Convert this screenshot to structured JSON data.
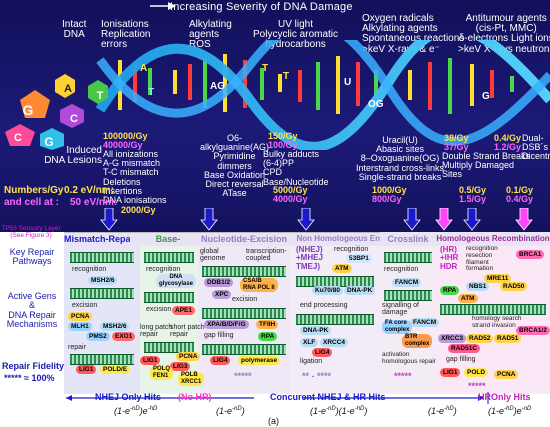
{
  "header": {
    "severity_title": "Increasing Severity of DNA Damage"
  },
  "damage_columns": [
    {
      "label": "Intact\nDNA"
    },
    {
      "label": "Ionisations\nReplication\nerrors"
    },
    {
      "label": "Alkylating\nagents\nROS"
    },
    {
      "label": "UV light\nPolycyclic aromatic\nhydrocarbons"
    },
    {
      "label": "Oxygen radicals\nAlkylating agents\nSpontaneous reactions\n>keV X-rays & e⁻"
    },
    {
      "label": "Antitumour agents\n(cis-Pt, MMC)\nδ-electrons Light ions\n>keV X-rays neutrons"
    }
  ],
  "lesions": {
    "induced_label": "Induced\nDNA Lesions",
    "col1": {
      "rate_a": "100000/Gy",
      "rate_b": "40000/Gy",
      "text": "All ionizations\nA-G mismatch\nT-C mismatch\nDeletions\nInsertions\nDNA ionisations",
      "rate_c": "2000/Gy"
    },
    "col2": {
      "text": "O6-\nalkylguanine(AG)\nPyrimidine\ndimmers\nBase Oxidation\nDirect reversal\nATase"
    },
    "col3": {
      "rate_a": "150/Gy",
      "rate_b": "100/Gy",
      "text": "Bulky adducts\n(6-4)PP\nCPD\nBase/Nucleotide",
      "rate_c": "5000/Gy",
      "rate_d": "4000/Gy"
    },
    "col4": {
      "text": "Uracil(U)\nAbasic sites\n8–Oxoguanine(OG)\nInterstrand cross-links\nSingle-strand breaks",
      "rate_a": "1000/Gy",
      "rate_b": "800/Gy"
    },
    "col5": {
      "rate_a": "38/Gy",
      "rate_b": "37/Gy",
      "text": "Double Strand Breaks\nMultiply Damaged\nSites",
      "rate_c": "0.5/Gy",
      "rate_d": "1.5/Gy"
    },
    "col6": {
      "rate_a": "0.4/Gy",
      "text_a": "Dual-",
      "rate_b": "1.2/Gy",
      "text_b": "DSB´s\nDicentrics",
      "rate_c": "0.1/Gy",
      "rate_d": "0.4/Gy"
    }
  },
  "numbers": {
    "label": "Numbers/Gy",
    "line1": "0.2 eV/nm:",
    "line2_prefix": "and cell at :",
    "line2": "50 eV/nm:"
  },
  "sensory": {
    "text": "TP53 Sensory Layer\n(See Figure 3)"
  },
  "left_labels": {
    "key_repair": "Key Repair\nPathways",
    "active_genes": "Active Gens\n&\nDNA Repair\nMechanisms",
    "fidelity": "Repair Fidelity:",
    "fidelity_value": "***** ≈ 100%"
  },
  "pathways": [
    {
      "name": "Mismatch-Repair",
      "color": "#1a1acc"
    },
    {
      "name": "Base-",
      "color": "#3a9a3a"
    },
    {
      "name": "Nucleotide-Excision",
      "color": "#9a7ac0"
    },
    {
      "name": "Non Homologeous End Joining",
      "color": "#9a7ac0"
    },
    {
      "name": "Crosslink",
      "color": "#9a7ac0"
    },
    {
      "name": "Homologeous Recombination",
      "color": "#9a2a9a"
    }
  ],
  "lanes": {
    "mmr": {
      "recognition": "recognition",
      "msh": "MSH2/6",
      "excision": "excision",
      "pcna": "PCNA",
      "mlh": "MLH1",
      "msh2": "MSH2/6",
      "pms": "PMS2",
      "exo": "EXO1",
      "repair": "repair",
      "lig": "LIG1",
      "pold": "POLD/E"
    },
    "ber": {
      "recognition": "recognition",
      "glyc": "DNA\nglycosylase",
      "excision": "excision",
      "ape": "APE1",
      "long": "long patch\nrepair",
      "short": "short patch\nrepair",
      "pcna": "PCNA",
      "lig1": "LIG1",
      "lig3": "LIG3",
      "polq": "POLQ\nFEN1",
      "polb": "POLB\nXRCC1"
    },
    "ner": {
      "global": "global\ngenome",
      "tc": "transcription-\ncoupled",
      "ddb": "DDB1/2",
      "csa": "CSA/B\nRNA POL II",
      "xpc": "XPC",
      "excision": "excision",
      "xpa": "XPA/B/D/F/G",
      "tfiih": "TFIIH",
      "gap": "gap filling",
      "rpa": "RPA",
      "lig4": "LIG4",
      "pol": "polymerase",
      "stars": "*****"
    },
    "nhej": {
      "title": "(NHEJ)\n+MHEJ\nTMEJ)",
      "recognition": "recognition",
      "ku": "Ku70/80",
      "dnapk": "DNA-PK",
      "p53bp1": "53BP1",
      "atm": "ATM",
      "endproc": "end processing",
      "dnapk2": "DNA-PK",
      "xlf": "XLF",
      "xrcc4": "XRCC4",
      "lig4": "LIG4",
      "ligation": "ligation",
      "stars": "** - ****"
    },
    "fa": {
      "recognition": "recognition",
      "fancm": "FANCM",
      "signal": "signalling of\ndamage",
      "facore": "FA core\ncomplex",
      "fancm2": "FANCM",
      "btr": "BTR\ncomplex",
      "activ": "activation\nhomologous repair",
      "stars": "*****"
    },
    "hr": {
      "title": "(HR)\n+IHR\nHDR",
      "recog": "recognition\nresection\nfilament\nformation",
      "brca1": "BRCA1",
      "mre11": "MRE11",
      "nbs": "NBS1",
      "rad50": "RAD50",
      "rpa": "RPA",
      "atm": "ATM",
      "homology": "homology search\nstrand invasion",
      "xrcc3": "XRCC3",
      "rad52": "RAD52",
      "rad51": "RAD51",
      "brca12": "BRCA1/2",
      "rad51c": "RAD51C",
      "gap": "gap filling",
      "lig1": "LIG1",
      "pold": "POLD",
      "pcna": "PCNA",
      "stars": "*****"
    }
  },
  "footer": {
    "nhej_only": "NHEJ Only Hits",
    "no_hr": "(No HR)",
    "concurrent": "Concurent NHEJ & HR Hits",
    "hr_only": "HROnly Hits",
    "f1": "(1-e",
    "f1_sup": "-nD",
    "f1b": ")e",
    "f1b_sup": "-hD",
    "f2": "(1-e",
    "f2_sup": "-nD",
    "f2b": ")",
    "f3": "(1-e",
    "f3_sup": "-nD",
    "f3b": ")(1-e",
    "f3b_sup": "-hD",
    "f3c": ")",
    "f4": "(1-e",
    "f4_sup": "-hD",
    "f4b": ")",
    "f5": "(1-e",
    "f5_sup": "-hD",
    "f5b": ")e",
    "f5b_sup": "-nD"
  },
  "caption": "(a)",
  "colors": {
    "accent": "#1a1acc",
    "magenta": "#ff44ff",
    "yellow": "#ffe34a",
    "bg_top": "#12105a"
  }
}
